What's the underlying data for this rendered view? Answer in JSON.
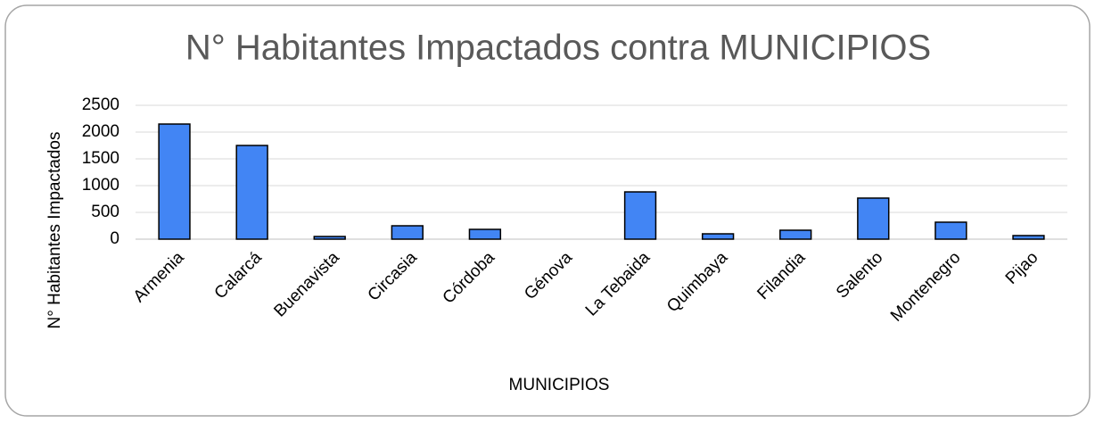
{
  "chart_data": {
    "type": "bar",
    "title": "N° Habitantes Impactados contra MUNICIPIOS",
    "x_label": "MUNICIPIOS",
    "y_label": "N° Habitantes Impactados",
    "categories": [
      "Armenia",
      "Calarcá",
      "Buenavista",
      "Circasia",
      "Córdoba",
      "Génova",
      "La Tebaida",
      "Quimbaya",
      "Filandia",
      "Salento",
      "Montenegro",
      "Pijao"
    ],
    "values": [
      2150,
      1750,
      50,
      250,
      183,
      0,
      883,
      100,
      167,
      767,
      317,
      67
    ],
    "color": "#4285f4",
    "ylim": [
      0,
      2500
    ],
    "yticks": [
      0,
      500,
      1000,
      1500,
      2000,
      2500
    ],
    "grid": true
  }
}
